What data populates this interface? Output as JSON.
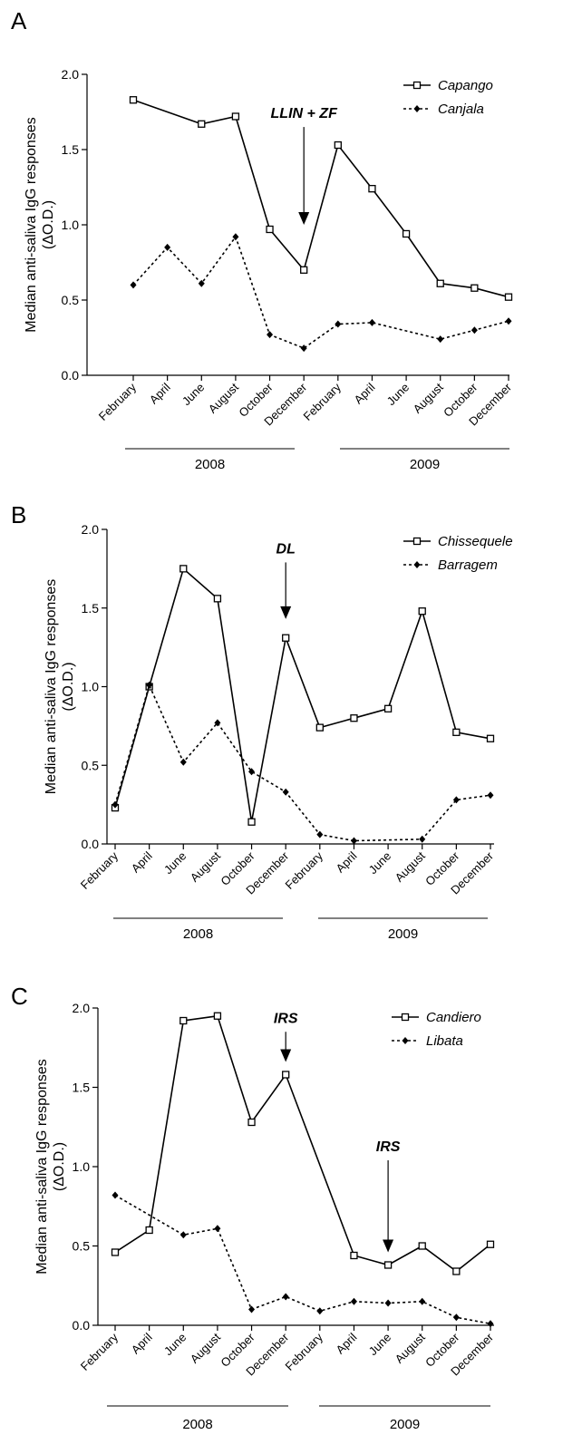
{
  "chart_data": [
    {
      "panel_letter": "A",
      "type": "line",
      "ylabel_line1": "Median anti-saliva IgG responses",
      "ylabel_line2": "(ΔO.D.)",
      "ylim": [
        0,
        2.0
      ],
      "yticks": [
        "0.0",
        "0.5",
        "1.0",
        "1.5",
        "2.0"
      ],
      "categories": [
        "February",
        "April",
        "June",
        "August",
        "October",
        "December",
        "February",
        "April",
        "June",
        "August",
        "October",
        "December"
      ],
      "year_labels": [
        "2008",
        "2009"
      ],
      "series": [
        {
          "name": "Capango",
          "style": "solid",
          "marker": "open-square",
          "values": [
            1.83,
            null,
            1.67,
            1.72,
            0.97,
            0.7,
            1.53,
            1.24,
            0.94,
            0.61,
            0.58,
            0.52
          ]
        },
        {
          "name": "Canjala",
          "style": "dashed",
          "marker": "filled-diamond",
          "values": [
            0.6,
            0.85,
            0.61,
            0.92,
            0.27,
            0.18,
            0.34,
            0.35,
            null,
            0.24,
            0.3,
            0.36
          ]
        }
      ],
      "annotations": [
        {
          "text": "LLIN + ZF",
          "category_index": 5,
          "arrow_from": 1.65,
          "arrow_to": 1.0
        }
      ]
    },
    {
      "panel_letter": "B",
      "type": "line",
      "ylabel_line1": "Median anti-saliva IgG responses",
      "ylabel_line2": "(ΔO.D.)",
      "ylim": [
        0,
        2.0
      ],
      "yticks": [
        "0.0",
        "0.5",
        "1.0",
        "1.5",
        "2.0"
      ],
      "categories": [
        "February",
        "April",
        "June",
        "August",
        "October",
        "December",
        "February",
        "April",
        "June",
        "August",
        "October",
        "December"
      ],
      "year_labels": [
        "2008",
        "2009"
      ],
      "series": [
        {
          "name": "Chissequele",
          "style": "solid",
          "marker": "open-square",
          "values": [
            0.23,
            1.0,
            1.75,
            1.56,
            0.14,
            1.31,
            0.74,
            0.8,
            0.86,
            1.48,
            0.71,
            0.67
          ]
        },
        {
          "name": "Barragem",
          "style": "dashed",
          "marker": "filled-diamond",
          "values": [
            0.25,
            1.01,
            0.52,
            0.77,
            0.46,
            0.33,
            0.06,
            0.02,
            null,
            0.03,
            0.28,
            0.31
          ]
        }
      ],
      "annotations": [
        {
          "text": "DL",
          "category_index": 5,
          "arrow_from": 1.79,
          "arrow_to": 1.43
        }
      ]
    },
    {
      "panel_letter": "C",
      "type": "line",
      "ylabel_line1": "Median anti-saliva IgG responses",
      "ylabel_line2": "(ΔO.D.)",
      "ylim": [
        0,
        2.0
      ],
      "yticks": [
        "0.0",
        "0.5",
        "1.0",
        "1.5",
        "2.0"
      ],
      "categories": [
        "February",
        "April",
        "June",
        "August",
        "October",
        "December",
        "February",
        "April",
        "June",
        "August",
        "October",
        "December"
      ],
      "year_labels": [
        "2008",
        "2009"
      ],
      "series": [
        {
          "name": "Candiero",
          "style": "solid",
          "marker": "open-square",
          "values": [
            0.46,
            0.6,
            1.92,
            1.95,
            1.28,
            1.58,
            null,
            0.44,
            0.38,
            0.5,
            0.34,
            0.51
          ]
        },
        {
          "name": "Libata",
          "style": "dashed",
          "marker": "filled-diamond",
          "values": [
            0.82,
            null,
            0.57,
            0.61,
            0.1,
            0.18,
            0.09,
            0.15,
            0.14,
            0.15,
            0.05,
            0.01
          ]
        }
      ],
      "annotations": [
        {
          "text": "IRS",
          "category_index": 5,
          "arrow_from": 1.85,
          "arrow_to": 1.66
        },
        {
          "text": "IRS",
          "category_index": 8,
          "arrow_from": 1.04,
          "arrow_to": 0.46
        }
      ]
    }
  ]
}
